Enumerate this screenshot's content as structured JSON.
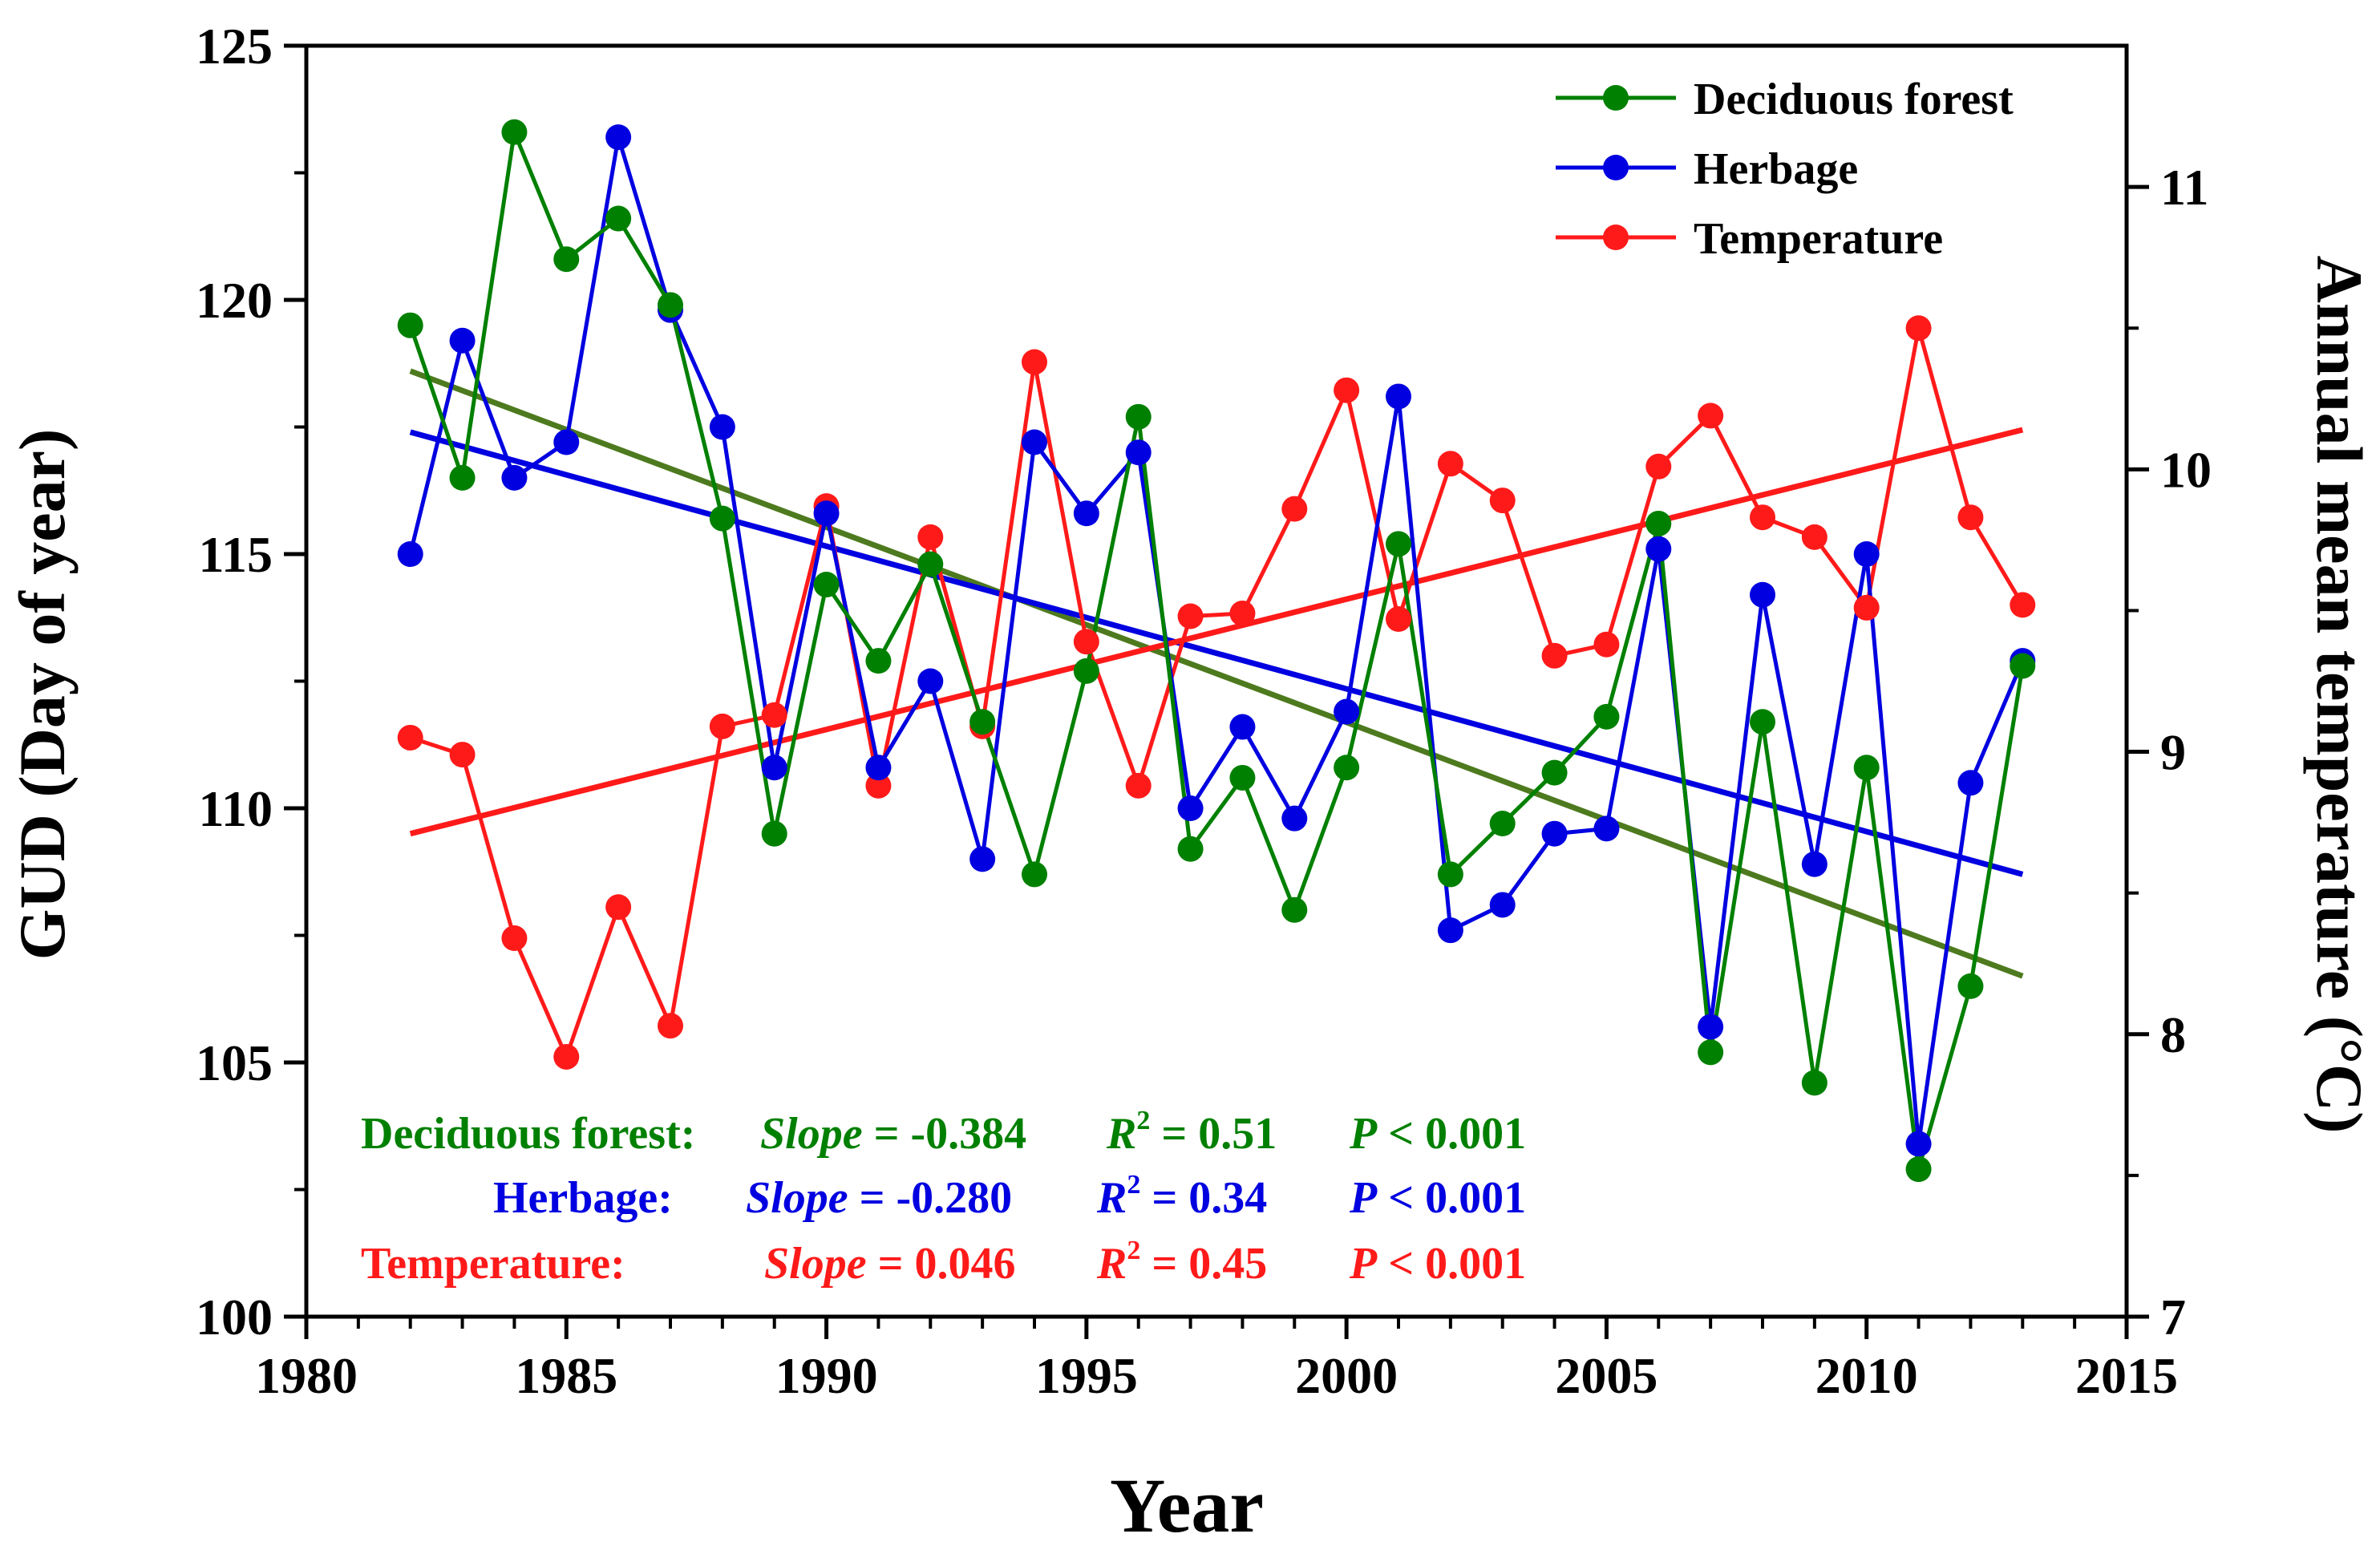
{
  "chart_data": {
    "type": "line",
    "xlabel": "Year",
    "ylabel_left": "GUD (Day of year)",
    "ylabel_right": "Annual mean temperature (°C)",
    "xlim": [
      1980,
      2015
    ],
    "xticks": [
      1980,
      1985,
      1990,
      1995,
      2000,
      2005,
      2010,
      2015
    ],
    "ylim_left": [
      100,
      125
    ],
    "yticks_left": [
      100,
      105,
      110,
      115,
      120,
      125
    ],
    "ylim_right": [
      7,
      11.5
    ],
    "yticks_right": [
      7,
      8,
      9,
      10,
      11
    ],
    "x": [
      1982,
      1983,
      1984,
      1985,
      1986,
      1987,
      1988,
      1989,
      1990,
      1991,
      1992,
      1993,
      1994,
      1995,
      1996,
      1997,
      1998,
      1999,
      2000,
      2001,
      2002,
      2003,
      2004,
      2005,
      2006,
      2007,
      2008,
      2009,
      2010,
      2011,
      2012,
      2013
    ],
    "series": [
      {
        "key": "deciduous",
        "name": "Deciduous forest",
        "axis": "left",
        "color": "#008000",
        "trend_color": "#4d7a1e",
        "values": [
          119.5,
          116.5,
          123.3,
          120.8,
          121.6,
          119.9,
          115.7,
          109.5,
          114.4,
          112.9,
          114.8,
          111.7,
          108.7,
          112.7,
          117.7,
          109.2,
          110.6,
          108.0,
          110.8,
          115.2,
          108.7,
          109.7,
          110.7,
          111.8,
          115.6,
          105.2,
          111.7,
          104.6,
          110.8,
          102.9,
          106.5,
          112.8
        ],
        "trend": {
          "start": 118.6,
          "end": 106.7
        },
        "stats": {
          "label": "Deciduous forest:",
          "slope": "-0.384",
          "r2": "0.51",
          "p": "0.001"
        }
      },
      {
        "key": "herbage",
        "name": "Herbage",
        "axis": "left",
        "color": "#0000e0",
        "trend_color": "#0000e0",
        "values": [
          115.0,
          119.2,
          116.5,
          117.2,
          123.2,
          119.8,
          117.5,
          110.8,
          115.8,
          110.8,
          112.5,
          109.0,
          117.2,
          115.8,
          117.0,
          110.0,
          111.6,
          109.8,
          111.9,
          118.1,
          107.6,
          108.1,
          109.5,
          109.6,
          115.1,
          105.7,
          114.2,
          108.9,
          115.0,
          103.4,
          110.5,
          112.9
        ],
        "trend": {
          "start": 117.4,
          "end": 108.7
        },
        "stats": {
          "label": "Herbage:",
          "slope": "-0.280",
          "r2": "0.34",
          "p": "0.001"
        }
      },
      {
        "key": "temperature",
        "name": "Temperature",
        "axis": "right",
        "color": "#ff1a1a",
        "trend_color": "#ff1a1a",
        "values": [
          9.05,
          8.99,
          8.34,
          7.92,
          8.45,
          8.03,
          9.09,
          9.13,
          9.87,
          8.88,
          9.76,
          9.09,
          10.38,
          9.39,
          8.88,
          9.48,
          9.49,
          9.86,
          10.28,
          9.47,
          10.02,
          9.89,
          9.34,
          9.38,
          10.01,
          10.19,
          9.83,
          9.76,
          9.51,
          10.5,
          9.83,
          9.52
        ],
        "trend": {
          "start": 8.71,
          "end": 10.14
        },
        "stats": {
          "label": "Temperature:",
          "slope": "0.046",
          "r2": "0.45",
          "p": "0.001"
        }
      }
    ],
    "legend_position": "top-right",
    "stats_text": {
      "slope_word": "Slope",
      "equals": " = ",
      "r_letter": "R",
      "superscript": "2",
      "p_letter": "P",
      "less_than": " < "
    }
  }
}
